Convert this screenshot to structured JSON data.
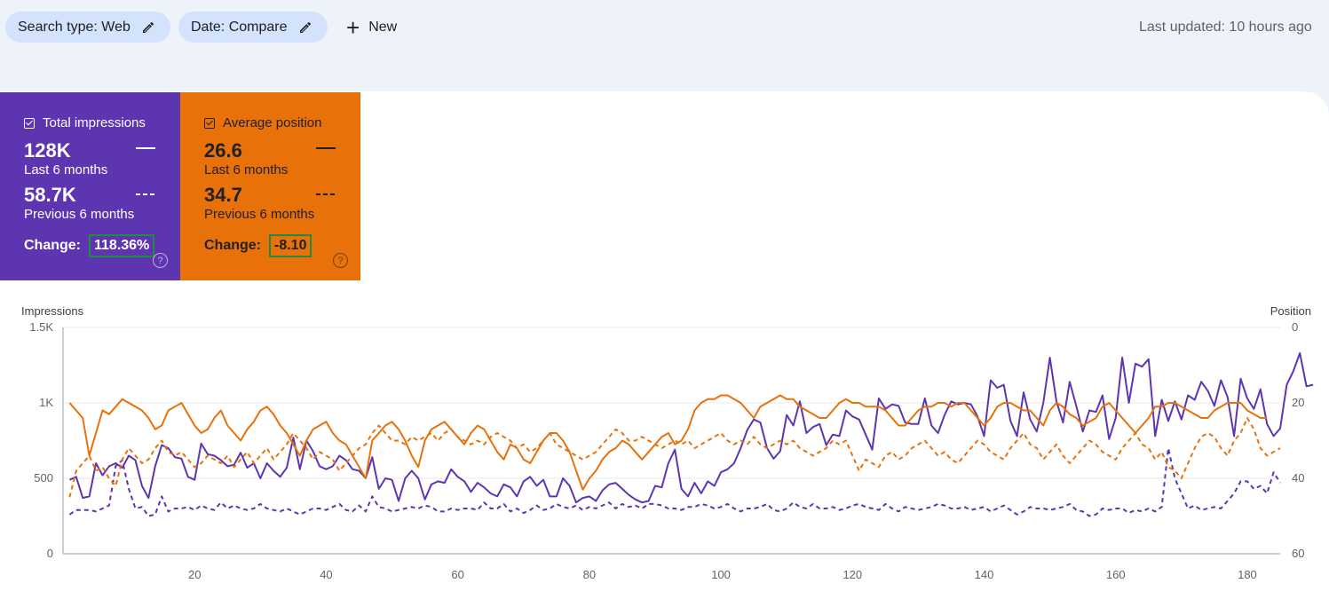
{
  "filters": {
    "search_type_label": "Search type: Web",
    "date_label": "Date: Compare",
    "new_label": "New",
    "last_updated": "Last updated: 10 hours ago"
  },
  "cards": {
    "impressions": {
      "title": "Total impressions",
      "value_current": "128K",
      "label_current": "Last 6 months",
      "value_previous": "58.7K",
      "label_previous": "Previous 6 months",
      "change_label": "Change:",
      "change_value": "118.36%",
      "color": "#5e35b1"
    },
    "position": {
      "title": "Average position",
      "value_current": "26.6",
      "label_current": "Last 6 months",
      "value_previous": "34.7",
      "label_previous": "Previous 6 months",
      "change_label": "Change:",
      "change_value": "-8.10",
      "color": "#e8710a"
    }
  },
  "chart_data": {
    "type": "line",
    "ylabel_left": "Impressions",
    "ylabel_right": "Position",
    "yticks_left": [
      "0",
      "500",
      "1K",
      "1.5K"
    ],
    "yticks_right": [
      "0",
      "20",
      "40",
      "60"
    ],
    "xticks": [
      20,
      40,
      60,
      80,
      100,
      120,
      140,
      160,
      180
    ],
    "ylim_left": [
      0,
      1500
    ],
    "ylim_right": [
      0,
      60
    ],
    "right_axis_inverted": true,
    "xlim": [
      0,
      185
    ],
    "grid": true,
    "series": [
      {
        "name": "Total impressions",
        "axis": "left",
        "style": "solid",
        "color": "#5e35b1",
        "x_start": 1,
        "values": [
          490,
          510,
          370,
          380,
          600,
          520,
          580,
          600,
          570,
          650,
          620,
          450,
          370,
          580,
          720,
          700,
          640,
          630,
          510,
          490,
          730,
          660,
          650,
          620,
          580,
          590,
          670,
          570,
          600,
          500,
          600,
          550,
          510,
          570,
          770,
          560,
          750,
          680,
          580,
          560,
          580,
          650,
          620,
          560,
          550,
          500,
          640,
          430,
          500,
          490,
          350,
          500,
          550,
          500,
          360,
          460,
          480,
          470,
          560,
          510,
          480,
          410,
          470,
          440,
          400,
          380,
          460,
          440,
          380,
          480,
          510,
          450,
          490,
          380,
          380,
          500,
          450,
          340,
          370,
          380,
          350,
          420,
          460,
          470,
          430,
          390,
          360,
          340,
          350,
          450,
          440,
          600,
          690,
          430,
          380,
          470,
          400,
          480,
          450,
          540,
          560,
          600,
          700,
          820,
          890,
          870,
          700,
          630,
          680,
          920,
          850,
          1010,
          800,
          840,
          860,
          720,
          790,
          780,
          950,
          910,
          890,
          790,
          690,
          1030,
          960,
          990,
          980,
          870,
          860,
          860,
          1030,
          850,
          800,
          920,
          1010,
          990,
          1000,
          990,
          910,
          780,
          1150,
          1100,
          1120,
          880,
          780,
          1070,
          890,
          810,
          1000,
          1300,
          1010,
          870,
          1140,
          980,
          810,
          950,
          940,
          1050,
          760,
          900,
          1300,
          1000,
          1260,
          1240,
          1290,
          780,
          1020,
          880,
          1010,
          890,
          1050,
          1020,
          1140,
          1080,
          980,
          1150,
          1040,
          780,
          1160,
          1030,
          960,
          1090,
          860,
          780,
          830,
          1120,
          1210,
          1330,
          1110,
          1120
        ]
      },
      {
        "name": "Total impressions (previous period)",
        "axis": "left",
        "style": "dashed",
        "color": "#5e35b1",
        "x_start": 1,
        "values": [
          260,
          290,
          290,
          290,
          280,
          300,
          320,
          580,
          620,
          430,
          300,
          310,
          250,
          260,
          380,
          280,
          300,
          300,
          310,
          290,
          320,
          300,
          290,
          340,
          300,
          320,
          300,
          290,
          300,
          330,
          300,
          290,
          280,
          300,
          280,
          260,
          280,
          300,
          300,
          290,
          310,
          330,
          290,
          280,
          320,
          280,
          380,
          310,
          300,
          280,
          290,
          300,
          310,
          300,
          320,
          310,
          280,
          280,
          300,
          290,
          300,
          300,
          290,
          340,
          300,
          300,
          330,
          280,
          300,
          270,
          290,
          320,
          290,
          300,
          330,
          310,
          300,
          320,
          290,
          310,
          300,
          320,
          340,
          300,
          330,
          310,
          320,
          300,
          330,
          330,
          320,
          300,
          300,
          290,
          310,
          310,
          330,
          320,
          300,
          310,
          330,
          300,
          280,
          300,
          300,
          310,
          330,
          290,
          280,
          300,
          340,
          310,
          300,
          330,
          300,
          300,
          310,
          290,
          300,
          320,
          330,
          310,
          300,
          290,
          330,
          300,
          280,
          310,
          300,
          290,
          300,
          310,
          330,
          320,
          300,
          300,
          310,
          290,
          300,
          310,
          280,
          300,
          320,
          290,
          260,
          280,
          310,
          300,
          300,
          290,
          300,
          310,
          330,
          290,
          280,
          250,
          260,
          300,
          290,
          300,
          300,
          270,
          290,
          280,
          300,
          280,
          310,
          700,
          500,
          400,
          300,
          320,
          290,
          300,
          310,
          300,
          350,
          400,
          480,
          480,
          430,
          450,
          400,
          540,
          470
        ]
      },
      {
        "name": "Average position",
        "axis": "right",
        "style": "solid",
        "color": "#e8710a",
        "x_start": 1,
        "values": [
          20,
          22,
          24,
          34,
          28,
          22,
          23,
          21,
          19,
          20,
          21,
          22,
          24,
          27,
          26,
          22,
          21,
          20,
          23,
          26,
          28,
          27,
          24,
          22,
          26,
          28,
          30,
          27,
          25,
          22,
          21,
          23,
          26,
          28,
          31,
          34,
          30,
          27,
          26,
          25,
          28,
          30,
          31,
          34,
          37,
          40,
          30,
          28,
          26,
          25,
          27,
          30,
          34,
          37,
          30,
          27,
          26,
          25,
          27,
          29,
          31,
          28,
          26,
          27,
          30,
          33,
          35,
          31,
          32,
          35,
          36,
          33,
          30,
          28,
          28,
          30,
          33,
          38,
          43,
          40,
          38,
          35,
          33,
          32,
          30,
          31,
          33,
          35,
          33,
          31,
          29,
          28,
          31,
          30,
          27,
          22,
          20,
          19,
          19,
          18,
          18,
          19,
          20,
          22,
          24,
          21,
          20,
          19,
          18,
          19,
          19,
          21,
          22,
          23,
          24,
          24,
          22,
          20,
          19,
          20,
          20,
          21,
          21,
          21,
          22,
          24,
          26,
          26,
          24,
          22,
          21,
          21,
          20,
          20,
          21,
          20,
          20,
          22,
          24,
          26,
          24,
          21,
          20,
          20,
          21,
          22,
          22,
          24,
          26,
          22,
          20,
          21,
          23,
          24,
          26,
          25,
          24,
          21,
          20,
          22,
          24,
          26,
          28,
          26,
          24,
          21,
          21,
          20,
          20,
          21,
          22,
          23,
          24,
          24,
          22,
          21,
          20,
          20,
          20,
          22,
          23,
          24,
          24
        ]
      },
      {
        "name": "Average position (previous period)",
        "axis": "right",
        "style": "dashed",
        "color": "#e8710a",
        "x_start": 1,
        "values": [
          45,
          38,
          36,
          34,
          38,
          37,
          40,
          42,
          35,
          32,
          34,
          36,
          35,
          32,
          30,
          33,
          34,
          33,
          35,
          37,
          36,
          34,
          35,
          36,
          34,
          37,
          35,
          33,
          36,
          34,
          32,
          35,
          33,
          31,
          28,
          30,
          32,
          35,
          33,
          34,
          35,
          38,
          36,
          34,
          32,
          31,
          28,
          26,
          28,
          30,
          30,
          31,
          29,
          30,
          29,
          28,
          30,
          28,
          27,
          29,
          30,
          31,
          30,
          31,
          29,
          28,
          29,
          30,
          32,
          31,
          33,
          32,
          30,
          28,
          31,
          32,
          33,
          34,
          35,
          34,
          33,
          31,
          29,
          27,
          28,
          30,
          30,
          29,
          30,
          31,
          32,
          31,
          30,
          31,
          30,
          32,
          31,
          30,
          29,
          28,
          30,
          31,
          30,
          31,
          29,
          31,
          32,
          31,
          30,
          31,
          30,
          32,
          33,
          34,
          33,
          32,
          30,
          31,
          30,
          34,
          38,
          35,
          36,
          37,
          34,
          33,
          35,
          34,
          32,
          31,
          30,
          32,
          34,
          33,
          35,
          36,
          34,
          32,
          30,
          31,
          33,
          34,
          35,
          32,
          30,
          28,
          31,
          32,
          35,
          33,
          31,
          34,
          36,
          34,
          32,
          30,
          31,
          33,
          34,
          35,
          32,
          30,
          28,
          31,
          32,
          35,
          33,
          37,
          38,
          40,
          36,
          32,
          29,
          28,
          29,
          32,
          34,
          30,
          28,
          24,
          27,
          32,
          34,
          33,
          32
        ]
      }
    ]
  }
}
